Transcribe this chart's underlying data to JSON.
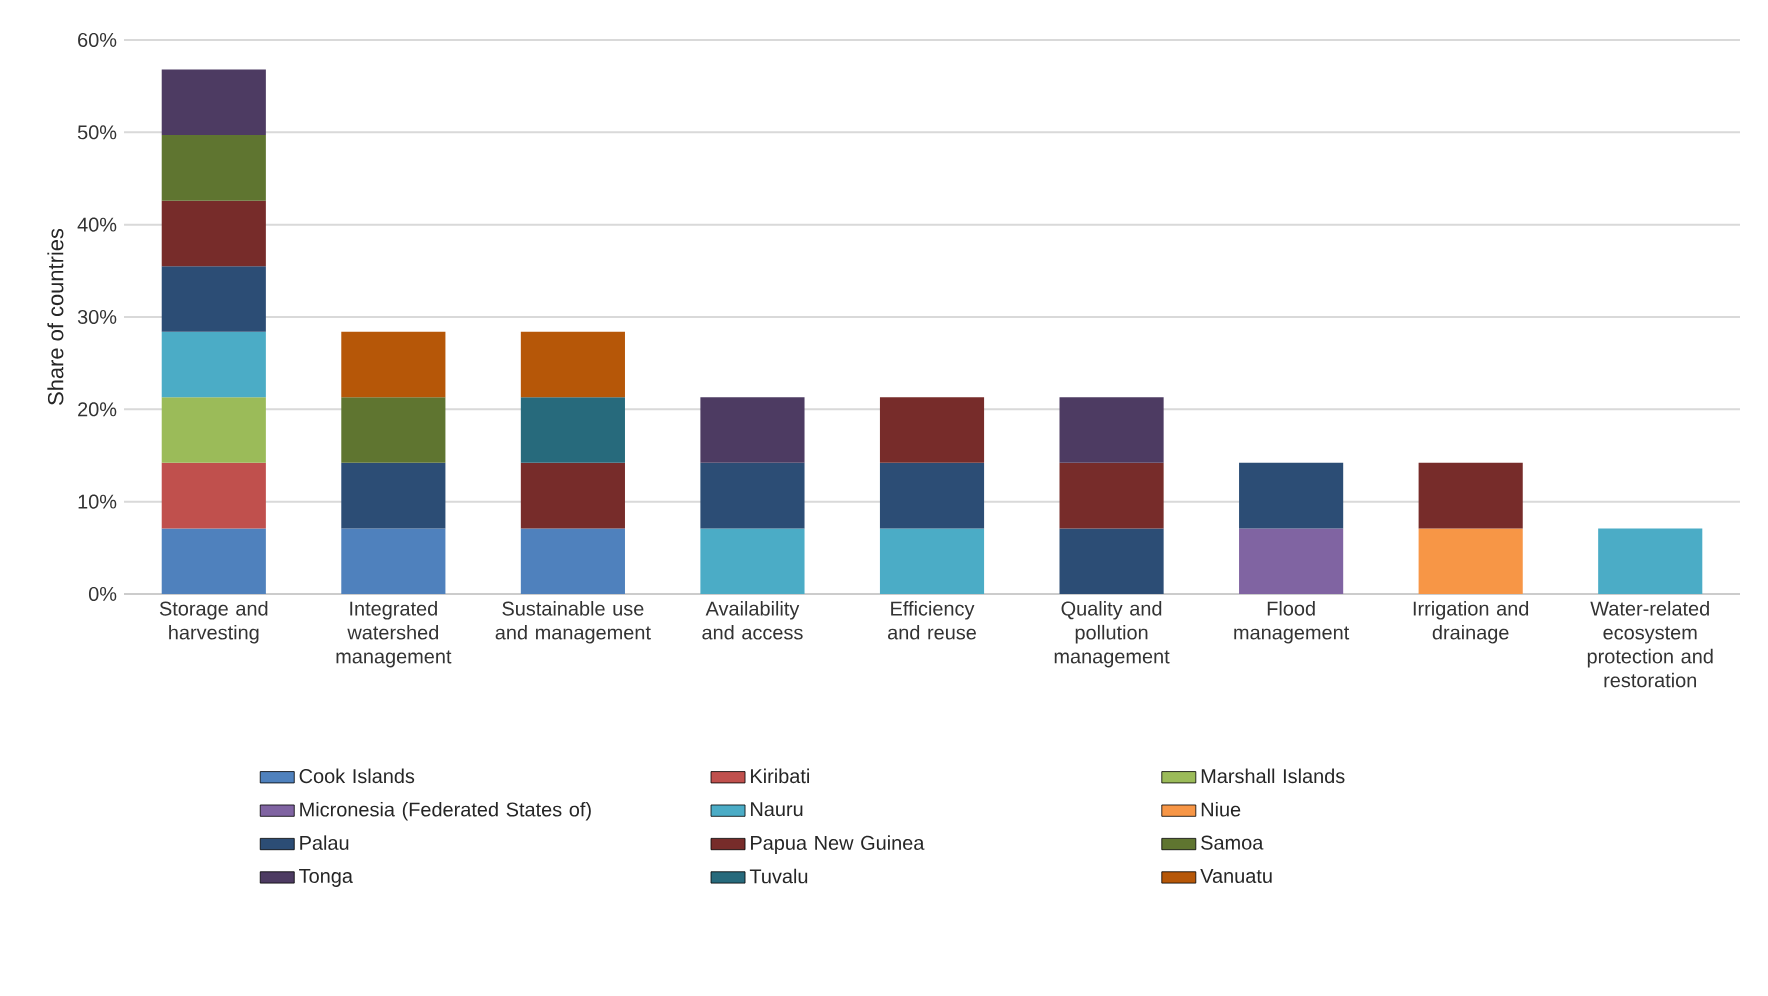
{
  "chart_data": {
    "type": "bar",
    "stacked": true,
    "ylabel": "Share of countries",
    "categories": [
      "Storage and harvesting",
      "Integrated watershed management",
      "Sustainable use and management",
      "Availability and access",
      "Efficiency and reuse",
      "Quality and pollution management",
      "Flood management",
      "Irrigation and drainage",
      "Water-related ecosystem protection and restoration"
    ],
    "ylim": [
      0,
      60
    ],
    "yticks": [
      {
        "value": 0,
        "label": "0%"
      },
      {
        "value": 10,
        "label": "10%"
      },
      {
        "value": 20,
        "label": "20%"
      },
      {
        "value": 30,
        "label": "30%"
      },
      {
        "value": 40,
        "label": "40%"
      },
      {
        "value": 50,
        "label": "50%"
      },
      {
        "value": 60,
        "label": "60%"
      }
    ],
    "grid": "y",
    "legend": "bottom",
    "series": [
      {
        "name": "Cook Islands",
        "color": "#4f81bd",
        "values": [
          7.1,
          7.1,
          7.1,
          null,
          null,
          null,
          null,
          null,
          null
        ]
      },
      {
        "name": "Kiribati",
        "color": "#c0504d",
        "values": [
          7.1,
          null,
          null,
          null,
          null,
          null,
          null,
          null,
          null
        ]
      },
      {
        "name": "Marshall Islands",
        "color": "#9bbb59",
        "values": [
          7.1,
          null,
          null,
          null,
          null,
          null,
          null,
          null,
          null
        ]
      },
      {
        "name": "Micronesia (Federated States of)",
        "color": "#8064a2",
        "values": [
          null,
          null,
          null,
          null,
          null,
          null,
          7.1,
          null,
          null
        ]
      },
      {
        "name": "Nauru",
        "color": "#4bacc6",
        "values": [
          7.1,
          null,
          null,
          7.1,
          7.1,
          null,
          null,
          null,
          7.1
        ]
      },
      {
        "name": "Niue",
        "color": "#f79646",
        "values": [
          null,
          null,
          null,
          null,
          null,
          null,
          null,
          7.1,
          null
        ]
      },
      {
        "name": "Palau",
        "color": "#2c4d75",
        "values": [
          7.1,
          7.1,
          null,
          7.1,
          7.1,
          7.1,
          7.1,
          null,
          null
        ]
      },
      {
        "name": "Papua New Guinea",
        "color": "#772c2a",
        "values": [
          7.1,
          null,
          7.1,
          null,
          7.1,
          7.1,
          null,
          7.1,
          null
        ]
      },
      {
        "name": "Samoa",
        "color": "#5f7530",
        "values": [
          7.1,
          7.1,
          null,
          null,
          null,
          null,
          null,
          null,
          null
        ]
      },
      {
        "name": "Tonga",
        "color": "#4d3b62",
        "values": [
          7.1,
          null,
          null,
          7.1,
          null,
          7.1,
          null,
          null,
          null
        ]
      },
      {
        "name": "Tuvalu",
        "color": "#276a7c",
        "values": [
          null,
          null,
          7.1,
          null,
          null,
          null,
          null,
          null,
          null
        ]
      },
      {
        "name": "Vanuatu",
        "color": "#b65708",
        "values": [
          null,
          7.1,
          7.1,
          null,
          null,
          null,
          null,
          null,
          null
        ]
      }
    ]
  }
}
